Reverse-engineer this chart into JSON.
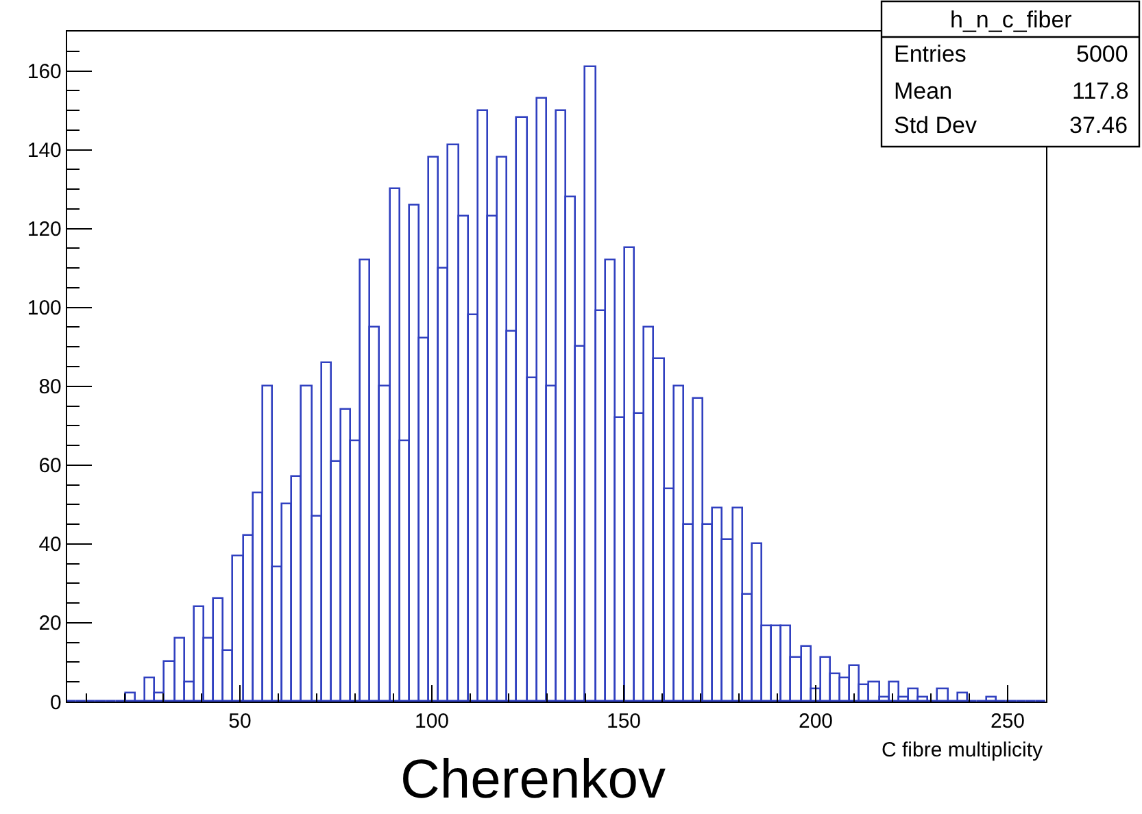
{
  "chart_data": {
    "type": "histogram",
    "xlabel": "C fibre multiplicity",
    "bins": [
      5,
      7.55,
      10.1,
      12.65,
      15.2,
      17.75,
      20.3,
      22.85,
      25.4,
      27.95,
      30.5,
      33.05,
      35.6,
      38.15,
      40.7,
      43.25,
      45.8,
      48.35,
      50.9,
      53.45,
      56,
      58.55,
      61.1,
      63.65,
      66.2,
      68.75,
      71.3,
      73.85,
      76.4,
      78.95,
      81.5,
      84.05,
      86.6,
      89.15,
      91.7,
      94.25,
      96.8,
      99.35,
      101.9,
      104.45,
      107,
      109.55,
      112.1,
      114.65,
      117.2,
      119.75,
      122.3,
      124.85,
      127.4,
      129.95,
      132.5,
      135.05,
      137.6,
      140.15,
      142.7,
      145.25,
      147.8,
      150.35,
      152.9,
      155.45,
      158,
      160.55,
      163.1,
      165.65,
      168.2,
      170.75,
      173.3,
      175.85,
      178.4,
      180.95,
      183.5,
      186.05,
      188.6,
      191.15,
      193.7,
      196.25,
      198.8,
      201.35,
      203.9,
      206.45,
      209,
      211.55,
      214.1,
      216.65,
      219.2,
      221.75,
      224.3,
      226.85,
      229.4,
      231.95,
      234.5,
      237.05,
      239.6,
      242.15,
      244.7,
      247.25,
      249.8,
      252.35,
      254.9,
      257.45,
      260
    ],
    "values": [
      0,
      0,
      0,
      0,
      0,
      0,
      2,
      0,
      6,
      2,
      10,
      16,
      5,
      24,
      16,
      26,
      13,
      37,
      42,
      53,
      80,
      34,
      50,
      57,
      80,
      47,
      86,
      61,
      74,
      66,
      112,
      95,
      80,
      130,
      66,
      126,
      92,
      138,
      110,
      141,
      123,
      98,
      150,
      123,
      138,
      94,
      148,
      82,
      153,
      80,
      150,
      128,
      90,
      161,
      99,
      112,
      72,
      115,
      73,
      95,
      87,
      54,
      80,
      45,
      77,
      45,
      49,
      41,
      49,
      27,
      40,
      19,
      19,
      19,
      11,
      14,
      3,
      11,
      7,
      6,
      9,
      4,
      5,
      1,
      5,
      1,
      3,
      1,
      0,
      3,
      0,
      2,
      0,
      0,
      1,
      0,
      0,
      0,
      0,
      0
    ],
    "color": "#3040c0",
    "xlim": [
      5,
      260
    ],
    "xticks": [
      50,
      100,
      150,
      200,
      250
    ],
    "ylim": [
      0,
      170
    ],
    "yticks": [
      0,
      20,
      40,
      60,
      80,
      100,
      120,
      140,
      160
    ],
    "annotations": [
      "h_n_c_fiber",
      "Entries",
      "5000",
      "Mean",
      "117.8",
      "Std Dev",
      "37.46",
      "Cherenkov"
    ]
  }
}
